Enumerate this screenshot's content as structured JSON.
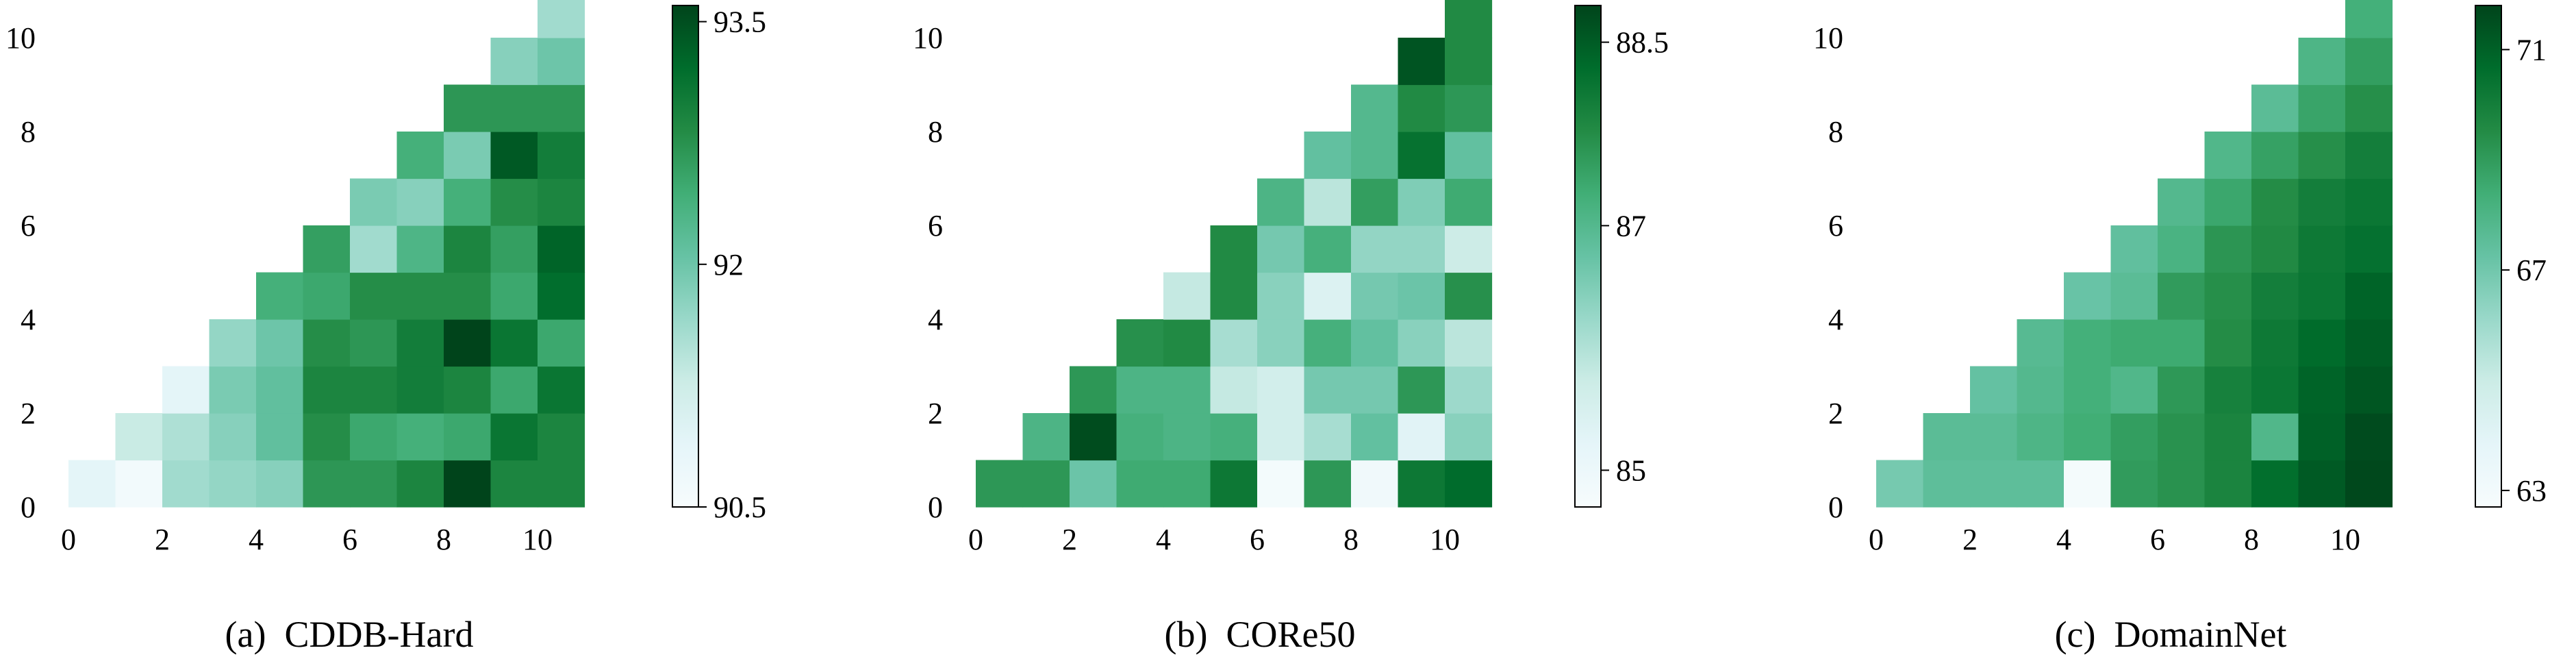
{
  "chart_data": [
    {
      "type": "heatmap",
      "caption": "(a)  CDDB-Hard",
      "x_ticks": [
        "0",
        "2",
        "4",
        "6",
        "8",
        "10"
      ],
      "y_ticks": [
        "0",
        "2",
        "4",
        "6",
        "8",
        "10"
      ],
      "colorbar_ticks": [
        {
          "label": "93.5",
          "value": 93.5
        },
        {
          "label": "92",
          "value": 92.0
        },
        {
          "label": "90.5",
          "value": 90.5
        }
      ],
      "colorbar_range": [
        90.5,
        93.6
      ],
      "colormap": [
        "#f7fcfd",
        "#e5f5f9",
        "#ccece6",
        "#99d8c9",
        "#66c2a4",
        "#41ae76",
        "#238b45",
        "#006d2c",
        "#00441b"
      ],
      "rows": [
        [
          90.9,
          90.6,
          91.6,
          91.7,
          91.8,
          92.7,
          92.7,
          92.9,
          93.6,
          92.9,
          92.9
        ],
        [
          91.3,
          91.5,
          91.8,
          92.1,
          92.8,
          92.5,
          92.4,
          92.5,
          93.1,
          92.9
        ],
        [
          90.9,
          91.9,
          92.1,
          92.9,
          92.9,
          93.0,
          92.9,
          92.5,
          93.1
        ],
        [
          91.7,
          92.0,
          92.8,
          92.7,
          93.0,
          93.6,
          93.1,
          92.5
        ],
        [
          92.4,
          92.5,
          92.8,
          92.8,
          92.8,
          92.5,
          93.2
        ],
        [
          92.6,
          91.6,
          92.3,
          92.9,
          92.6,
          93.3
        ],
        [
          91.9,
          91.8,
          92.4,
          92.8,
          92.9
        ],
        [
          92.4,
          91.9,
          93.4,
          93.0
        ],
        [
          92.7,
          92.7,
          92.7
        ],
        [
          91.8,
          92.0
        ],
        [
          91.6
        ]
      ]
    },
    {
      "type": "heatmap",
      "caption": "(b)  CORe50",
      "x_ticks": [
        "0",
        "2",
        "4",
        "6",
        "8",
        "10"
      ],
      "y_ticks": [
        "0",
        "2",
        "4",
        "6",
        "8",
        "10"
      ],
      "colorbar_ticks": [
        {
          "label": "88.5",
          "value": 88.5
        },
        {
          "label": "87",
          "value": 87.0
        },
        {
          "label": "85",
          "value": 85.0
        }
      ],
      "colorbar_range": [
        84.7,
        88.8
      ],
      "colormap": [
        "#f7fcfd",
        "#e5f5f9",
        "#ccece6",
        "#99d8c9",
        "#66c2a4",
        "#41ae76",
        "#238b45",
        "#006d2c",
        "#00441b"
      ],
      "rows": [
        [
          87.6,
          87.6,
          86.7,
          87.3,
          87.3,
          88.1,
          84.8,
          87.6,
          84.9,
          88.1,
          88.3
        ],
        [
          87.1,
          88.7,
          87.2,
          87.1,
          87.2,
          85.6,
          86.1,
          86.8,
          85.3,
          86.4
        ],
        [
          87.6,
          87.1,
          87.1,
          85.8,
          85.6,
          86.6,
          86.6,
          87.6,
          86.2
        ],
        [
          87.7,
          87.8,
          86.1,
          86.4,
          87.2,
          86.8,
          86.4,
          85.9
        ],
        [
          85.8,
          87.8,
          86.4,
          85.4,
          86.6,
          86.7,
          87.7
        ],
        [
          87.8,
          86.6,
          87.2,
          86.3,
          86.3,
          85.7
        ],
        [
          87.1,
          85.9,
          87.5,
          86.5,
          87.3
        ],
        [
          86.8,
          87.0,
          88.2,
          86.8
        ],
        [
          87.0,
          87.8,
          87.6
        ],
        [
          88.6,
          87.8
        ],
        [
          87.8
        ]
      ]
    },
    {
      "type": "heatmap",
      "caption": "(c)  DomainNet",
      "x_ticks": [
        "0",
        "2",
        "4",
        "6",
        "8",
        "10"
      ],
      "y_ticks": [
        "0",
        "2",
        "4",
        "6",
        "8",
        "10"
      ],
      "colorbar_ticks": [
        {
          "label": "71",
          "value": 71.0
        },
        {
          "label": "67",
          "value": 67.0
        },
        {
          "label": "63",
          "value": 63.0
        }
      ],
      "colorbar_range": [
        62.7,
        71.8
      ],
      "colormap": [
        "#f7fcfd",
        "#e5f5f9",
        "#ccece6",
        "#99d8c9",
        "#66c2a4",
        "#41ae76",
        "#238b45",
        "#006d2c",
        "#00441b"
      ],
      "rows": [
        [
          66.9,
          67.5,
          67.5,
          67.5,
          62.9,
          69.0,
          69.3,
          69.8,
          70.6,
          71.2,
          71.7
        ],
        [
          67.6,
          67.6,
          68.0,
          68.4,
          68.9,
          69.3,
          69.8,
          67.9,
          71.0,
          71.6
        ],
        [
          67.3,
          67.8,
          68.3,
          67.9,
          69.1,
          69.9,
          70.3,
          70.9,
          71.3
        ],
        [
          67.7,
          68.3,
          68.5,
          68.5,
          69.5,
          70.2,
          70.7,
          71.1
        ],
        [
          67.2,
          67.6,
          69.0,
          69.4,
          70.0,
          70.3,
          70.9
        ],
        [
          67.4,
          68.1,
          69.2,
          69.6,
          70.2,
          70.5
        ],
        [
          67.8,
          68.6,
          69.5,
          70.0,
          70.3
        ],
        [
          67.9,
          68.8,
          69.4,
          70.0
        ],
        [
          67.6,
          68.7,
          69.4
        ],
        [
          68.0,
          68.9
        ],
        [
          68.3
        ]
      ]
    }
  ]
}
